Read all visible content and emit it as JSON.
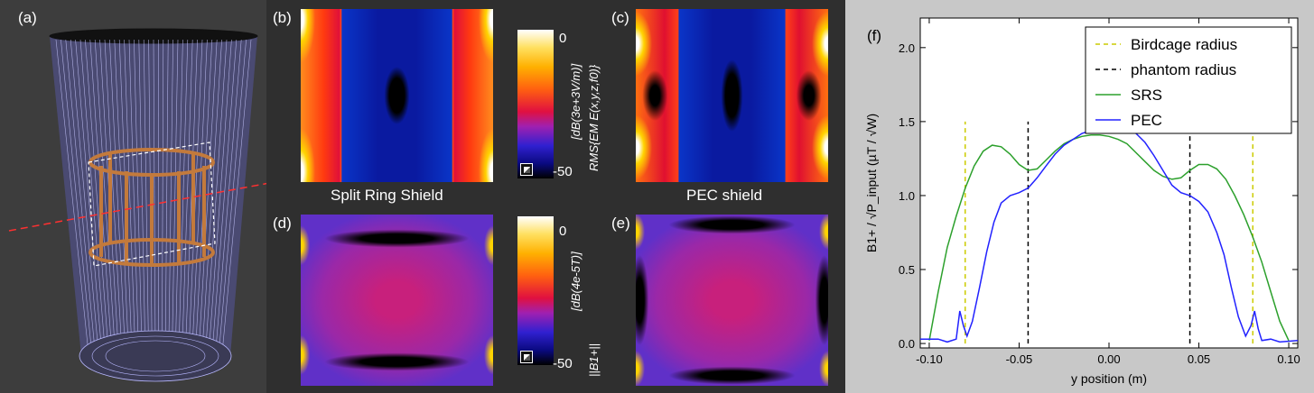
{
  "panels": {
    "a": "(a)",
    "b": "(b)",
    "c": "(c)",
    "d": "(d)",
    "e": "(e)",
    "f": "(f)"
  },
  "captions": {
    "split_ring": "Split Ring Shield",
    "pec": "PEC shield"
  },
  "colorbar_top": {
    "max": "0",
    "min": "-50",
    "unit": "[dB(3e+3V/m)]",
    "quantity": "RMS{EM E(x,y,z,f0)}"
  },
  "colorbar_bottom": {
    "max": "0",
    "min": "-50",
    "unit": "[dB(4e-5T)]",
    "quantity": "||B1+||"
  },
  "colors": {
    "bg": "#2f2f2f",
    "srs": "#2ca02c",
    "pec": "#2222ff",
    "birdcage": "#cccc00",
    "phantom": "#000000"
  },
  "chart_data": {
    "type": "line",
    "title": "",
    "xlabel": "y position (m)",
    "ylabel": "B1+ / √P_input  (µT / √W)",
    "xlim": [
      -0.105,
      0.105
    ],
    "ylim": [
      -0.03,
      2.2
    ],
    "xticks": [
      "-0.10",
      "-0.05",
      "0.00",
      "0.05",
      "0.10"
    ],
    "yticks": [
      "0.0",
      "0.5",
      "1.0",
      "1.5",
      "2.0"
    ],
    "legend": [
      "Birdcage radius",
      "phantom radius",
      "SRS",
      "PEC"
    ],
    "vlines": [
      {
        "name": "Birdcage radius",
        "x": [
          -0.08,
          0.08
        ],
        "y": [
          0,
          1.5
        ]
      },
      {
        "name": "phantom radius",
        "x": [
          -0.045,
          0.045
        ],
        "y": [
          0,
          1.5
        ]
      }
    ],
    "series": [
      {
        "name": "SRS",
        "x": [
          -0.1,
          -0.095,
          -0.09,
          -0.085,
          -0.08,
          -0.075,
          -0.07,
          -0.065,
          -0.06,
          -0.055,
          -0.05,
          -0.045,
          -0.04,
          -0.035,
          -0.03,
          -0.025,
          -0.02,
          -0.015,
          -0.01,
          -0.005,
          0,
          0.005,
          0.01,
          0.015,
          0.02,
          0.025,
          0.03,
          0.035,
          0.04,
          0.045,
          0.05,
          0.055,
          0.06,
          0.065,
          0.07,
          0.075,
          0.08,
          0.085,
          0.09,
          0.095,
          0.1
        ],
        "y": [
          0.02,
          0.35,
          0.65,
          0.86,
          1.05,
          1.2,
          1.3,
          1.34,
          1.33,
          1.28,
          1.21,
          1.17,
          1.18,
          1.24,
          1.3,
          1.35,
          1.38,
          1.4,
          1.41,
          1.41,
          1.4,
          1.38,
          1.35,
          1.29,
          1.23,
          1.17,
          1.13,
          1.11,
          1.12,
          1.17,
          1.21,
          1.21,
          1.18,
          1.11,
          1.0,
          0.87,
          0.72,
          0.55,
          0.35,
          0.15,
          0.02
        ]
      },
      {
        "name": "PEC",
        "x": [
          -0.105,
          -0.095,
          -0.09,
          -0.085,
          -0.083,
          -0.081,
          -0.079,
          -0.076,
          -0.072,
          -0.068,
          -0.064,
          -0.06,
          -0.055,
          -0.05,
          -0.045,
          -0.04,
          -0.035,
          -0.03,
          -0.025,
          -0.02,
          -0.015,
          -0.01,
          -0.005,
          0,
          0.005,
          0.01,
          0.015,
          0.02,
          0.025,
          0.03,
          0.035,
          0.04,
          0.045,
          0.05,
          0.055,
          0.06,
          0.064,
          0.068,
          0.072,
          0.076,
          0.079,
          0.081,
          0.083,
          0.085,
          0.09,
          0.095,
          0.105
        ],
        "y": [
          0.03,
          0.03,
          0.01,
          0.03,
          0.22,
          0.12,
          0.05,
          0.15,
          0.38,
          0.62,
          0.82,
          0.95,
          1.0,
          1.02,
          1.05,
          1.12,
          1.2,
          1.28,
          1.34,
          1.38,
          1.42,
          1.44,
          1.45,
          1.46,
          1.45,
          1.44,
          1.42,
          1.36,
          1.27,
          1.17,
          1.07,
          1.02,
          1.0,
          0.96,
          0.89,
          0.75,
          0.6,
          0.38,
          0.18,
          0.05,
          0.12,
          0.22,
          0.1,
          0.02,
          0.03,
          0.01,
          0.02
        ]
      }
    ]
  }
}
